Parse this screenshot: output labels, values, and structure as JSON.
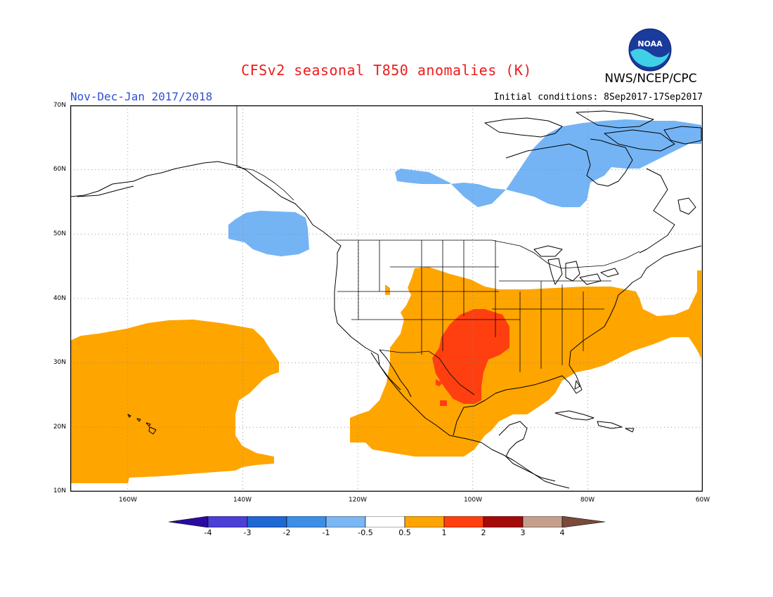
{
  "header": {
    "title": "CFSv2 seasonal T850 anomalies (K)",
    "period": "Nov-Dec-Jan 2017/2018",
    "initial_conditions": "Initial conditions: 8Sep2017-17Sep2017",
    "agency": "NWS/NCEP/CPC",
    "logo_text": "NOAA"
  },
  "map": {
    "lat_labels": [
      "70N",
      "60N",
      "50N",
      "40N",
      "30N",
      "20N",
      "10N"
    ],
    "lon_labels": [
      "160W",
      "140W",
      "120W",
      "100W",
      "80W",
      "60W"
    ],
    "colors": {
      "anom_pos_05_1": "#ffa500",
      "anom_pos_1_2": "#ff3f0f",
      "anom_neg_1_05": "#74b4f5",
      "land_outline": "#000000",
      "gridline": "#888888"
    }
  },
  "colorbar": {
    "labels": [
      "-4",
      "-3",
      "-2",
      "-1",
      "-0.5",
      "0.5",
      "1",
      "2",
      "3",
      "4"
    ],
    "colors": [
      "#2a0ba0",
      "#4b3fd6",
      "#1f68d3",
      "#3c8ee6",
      "#7ab7f3",
      "#ffffff",
      "#ffa500",
      "#ff3f0f",
      "#a50a0a",
      "#c4a08c",
      "#7a4a3a"
    ]
  }
}
